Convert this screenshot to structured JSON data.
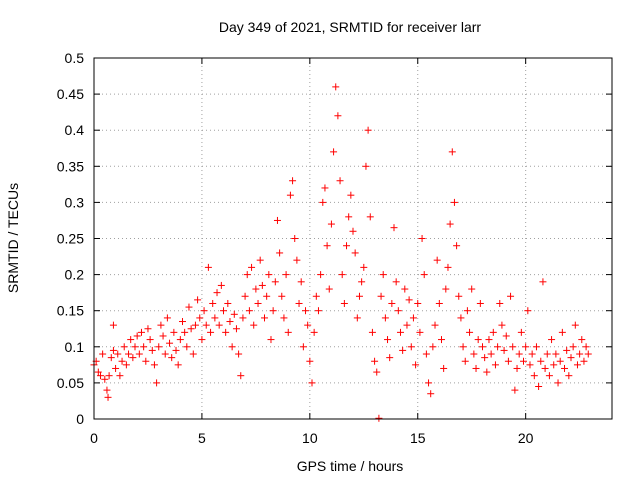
{
  "chart_data": {
    "type": "scatter",
    "title": "Day 349 of 2021, SRMTID for receiver larr",
    "xlabel": "GPS time / hours",
    "ylabel": "SRMTID / TECUs",
    "xlim": [
      0,
      24
    ],
    "ylim": [
      0,
      0.5
    ],
    "xticks": [
      0,
      5,
      10,
      15,
      20
    ],
    "xtick_labels": [
      "0",
      "5",
      "10",
      "15",
      "20"
    ],
    "yticks": [
      0,
      0.05,
      0.1,
      0.15,
      0.2,
      0.25,
      0.3,
      0.35,
      0.4,
      0.45,
      0.5
    ],
    "ytick_labels": [
      "0",
      "0.05",
      "0.1",
      "0.15",
      "0.2",
      "0.25",
      "0.3",
      "0.35",
      "0.4",
      "0.45",
      "0.5"
    ],
    "grid": true,
    "marker": "+",
    "color": "#ff0000",
    "series": [
      {
        "name": "SRMTID",
        "points": [
          [
            0.0,
            0.075
          ],
          [
            0.1,
            0.08
          ],
          [
            0.2,
            0.065
          ],
          [
            0.3,
            0.06
          ],
          [
            0.4,
            0.09
          ],
          [
            0.5,
            0.055
          ],
          [
            0.6,
            0.04
          ],
          [
            0.65,
            0.03
          ],
          [
            0.7,
            0.06
          ],
          [
            0.8,
            0.085
          ],
          [
            0.9,
            0.095
          ],
          [
            0.9,
            0.13
          ],
          [
            1.0,
            0.07
          ],
          [
            1.1,
            0.09
          ],
          [
            1.2,
            0.06
          ],
          [
            1.3,
            0.08
          ],
          [
            1.4,
            0.1
          ],
          [
            1.5,
            0.075
          ],
          [
            1.6,
            0.09
          ],
          [
            1.7,
            0.11
          ],
          [
            1.8,
            0.085
          ],
          [
            1.9,
            0.1
          ],
          [
            2.0,
            0.115
          ],
          [
            2.1,
            0.09
          ],
          [
            2.2,
            0.12
          ],
          [
            2.3,
            0.1
          ],
          [
            2.4,
            0.08
          ],
          [
            2.5,
            0.125
          ],
          [
            2.6,
            0.11
          ],
          [
            2.7,
            0.095
          ],
          [
            2.8,
            0.075
          ],
          [
            2.9,
            0.05
          ],
          [
            3.0,
            0.1
          ],
          [
            3.1,
            0.13
          ],
          [
            3.2,
            0.115
          ],
          [
            3.3,
            0.09
          ],
          [
            3.4,
            0.14
          ],
          [
            3.5,
            0.105
          ],
          [
            3.6,
            0.085
          ],
          [
            3.7,
            0.12
          ],
          [
            3.8,
            0.095
          ],
          [
            3.9,
            0.075
          ],
          [
            4.0,
            0.11
          ],
          [
            4.1,
            0.135
          ],
          [
            4.2,
            0.12
          ],
          [
            4.3,
            0.1
          ],
          [
            4.4,
            0.155
          ],
          [
            4.5,
            0.125
          ],
          [
            4.6,
            0.09
          ],
          [
            4.7,
            0.13
          ],
          [
            4.8,
            0.165
          ],
          [
            4.9,
            0.14
          ],
          [
            5.0,
            0.11
          ],
          [
            5.1,
            0.15
          ],
          [
            5.2,
            0.13
          ],
          [
            5.3,
            0.21
          ],
          [
            5.4,
            0.12
          ],
          [
            5.5,
            0.16
          ],
          [
            5.6,
            0.14
          ],
          [
            5.7,
            0.175
          ],
          [
            5.8,
            0.13
          ],
          [
            5.9,
            0.185
          ],
          [
            6.0,
            0.15
          ],
          [
            6.1,
            0.12
          ],
          [
            6.2,
            0.16
          ],
          [
            6.3,
            0.135
          ],
          [
            6.4,
            0.1
          ],
          [
            6.5,
            0.145
          ],
          [
            6.6,
            0.125
          ],
          [
            6.7,
            0.09
          ],
          [
            6.8,
            0.06
          ],
          [
            6.9,
            0.14
          ],
          [
            7.0,
            0.17
          ],
          [
            7.1,
            0.2
          ],
          [
            7.2,
            0.15
          ],
          [
            7.3,
            0.21
          ],
          [
            7.4,
            0.13
          ],
          [
            7.5,
            0.18
          ],
          [
            7.6,
            0.16
          ],
          [
            7.7,
            0.22
          ],
          [
            7.8,
            0.185
          ],
          [
            7.9,
            0.14
          ],
          [
            8.0,
            0.17
          ],
          [
            8.1,
            0.2
          ],
          [
            8.2,
            0.11
          ],
          [
            8.3,
            0.15
          ],
          [
            8.4,
            0.19
          ],
          [
            8.5,
            0.275
          ],
          [
            8.6,
            0.23
          ],
          [
            8.7,
            0.17
          ],
          [
            8.8,
            0.14
          ],
          [
            8.9,
            0.2
          ],
          [
            9.0,
            0.12
          ],
          [
            9.1,
            0.31
          ],
          [
            9.2,
            0.33
          ],
          [
            9.3,
            0.25
          ],
          [
            9.4,
            0.22
          ],
          [
            9.5,
            0.16
          ],
          [
            9.6,
            0.19
          ],
          [
            9.7,
            0.1
          ],
          [
            9.8,
            0.15
          ],
          [
            9.9,
            0.13
          ],
          [
            10.0,
            0.08
          ],
          [
            10.1,
            0.05
          ],
          [
            10.2,
            0.12
          ],
          [
            10.3,
            0.17
          ],
          [
            10.4,
            0.15
          ],
          [
            10.5,
            0.2
          ],
          [
            10.6,
            0.3
          ],
          [
            10.7,
            0.32
          ],
          [
            10.8,
            0.24
          ],
          [
            10.9,
            0.18
          ],
          [
            11.0,
            0.27
          ],
          [
            11.1,
            0.37
          ],
          [
            11.2,
            0.46
          ],
          [
            11.3,
            0.42
          ],
          [
            11.4,
            0.33
          ],
          [
            11.5,
            0.2
          ],
          [
            11.6,
            0.16
          ],
          [
            11.7,
            0.24
          ],
          [
            11.8,
            0.28
          ],
          [
            11.9,
            0.31
          ],
          [
            12.0,
            0.26
          ],
          [
            12.1,
            0.23
          ],
          [
            12.2,
            0.14
          ],
          [
            12.3,
            0.17
          ],
          [
            12.4,
            0.19
          ],
          [
            12.5,
            0.21
          ],
          [
            12.6,
            0.35
          ],
          [
            12.7,
            0.4
          ],
          [
            12.8,
            0.28
          ],
          [
            12.9,
            0.12
          ],
          [
            13.0,
            0.08
          ],
          [
            13.1,
            0.065
          ],
          [
            13.2,
            0.001
          ],
          [
            13.3,
            0.17
          ],
          [
            13.4,
            0.2
          ],
          [
            13.5,
            0.14
          ],
          [
            13.6,
            0.11
          ],
          [
            13.7,
            0.085
          ],
          [
            13.8,
            0.16
          ],
          [
            13.9,
            0.265
          ],
          [
            14.0,
            0.19
          ],
          [
            14.1,
            0.15
          ],
          [
            14.2,
            0.12
          ],
          [
            14.3,
            0.095
          ],
          [
            14.4,
            0.18
          ],
          [
            14.5,
            0.13
          ],
          [
            14.6,
            0.165
          ],
          [
            14.7,
            0.1
          ],
          [
            14.8,
            0.14
          ],
          [
            14.9,
            0.075
          ],
          [
            15.0,
            0.16
          ],
          [
            15.1,
            0.12
          ],
          [
            15.2,
            0.25
          ],
          [
            15.3,
            0.2
          ],
          [
            15.4,
            0.09
          ],
          [
            15.5,
            0.05
          ],
          [
            15.6,
            0.035
          ],
          [
            15.7,
            0.1
          ],
          [
            15.8,
            0.13
          ],
          [
            15.9,
            0.22
          ],
          [
            16.0,
            0.16
          ],
          [
            16.1,
            0.11
          ],
          [
            16.2,
            0.07
          ],
          [
            16.3,
            0.18
          ],
          [
            16.4,
            0.21
          ],
          [
            16.5,
            0.27
          ],
          [
            16.6,
            0.37
          ],
          [
            16.7,
            0.3
          ],
          [
            16.8,
            0.24
          ],
          [
            16.9,
            0.17
          ],
          [
            17.0,
            0.14
          ],
          [
            17.1,
            0.1
          ],
          [
            17.2,
            0.08
          ],
          [
            17.3,
            0.15
          ],
          [
            17.4,
            0.12
          ],
          [
            17.5,
            0.18
          ],
          [
            17.6,
            0.09
          ],
          [
            17.7,
            0.07
          ],
          [
            17.8,
            0.11
          ],
          [
            17.9,
            0.16
          ],
          [
            18.0,
            0.1
          ],
          [
            18.1,
            0.085
          ],
          [
            18.2,
            0.065
          ],
          [
            18.3,
            0.11
          ],
          [
            18.4,
            0.09
          ],
          [
            18.5,
            0.12
          ],
          [
            18.6,
            0.075
          ],
          [
            18.7,
            0.1
          ],
          [
            18.8,
            0.16
          ],
          [
            18.9,
            0.13
          ],
          [
            19.0,
            0.095
          ],
          [
            19.1,
            0.115
          ],
          [
            19.2,
            0.08
          ],
          [
            19.3,
            0.17
          ],
          [
            19.4,
            0.1
          ],
          [
            19.5,
            0.04
          ],
          [
            19.6,
            0.07
          ],
          [
            19.7,
            0.09
          ],
          [
            19.8,
            0.12
          ],
          [
            19.9,
            0.08
          ],
          [
            20.0,
            0.1
          ],
          [
            20.1,
            0.15
          ],
          [
            20.2,
            0.075
          ],
          [
            20.3,
            0.09
          ],
          [
            20.4,
            0.06
          ],
          [
            20.5,
            0.1
          ],
          [
            20.6,
            0.045
          ],
          [
            20.7,
            0.08
          ],
          [
            20.8,
            0.19
          ],
          [
            20.9,
            0.07
          ],
          [
            21.0,
            0.09
          ],
          [
            21.1,
            0.06
          ],
          [
            21.2,
            0.11
          ],
          [
            21.3,
            0.075
          ],
          [
            21.4,
            0.09
          ],
          [
            21.5,
            0.05
          ],
          [
            21.6,
            0.08
          ],
          [
            21.7,
            0.12
          ],
          [
            21.8,
            0.07
          ],
          [
            21.9,
            0.095
          ],
          [
            22.0,
            0.06
          ],
          [
            22.1,
            0.085
          ],
          [
            22.2,
            0.1
          ],
          [
            22.3,
            0.13
          ],
          [
            22.4,
            0.075
          ],
          [
            22.5,
            0.09
          ],
          [
            22.6,
            0.11
          ],
          [
            22.7,
            0.08
          ],
          [
            22.8,
            0.1
          ],
          [
            22.9,
            0.09
          ]
        ]
      }
    ]
  }
}
